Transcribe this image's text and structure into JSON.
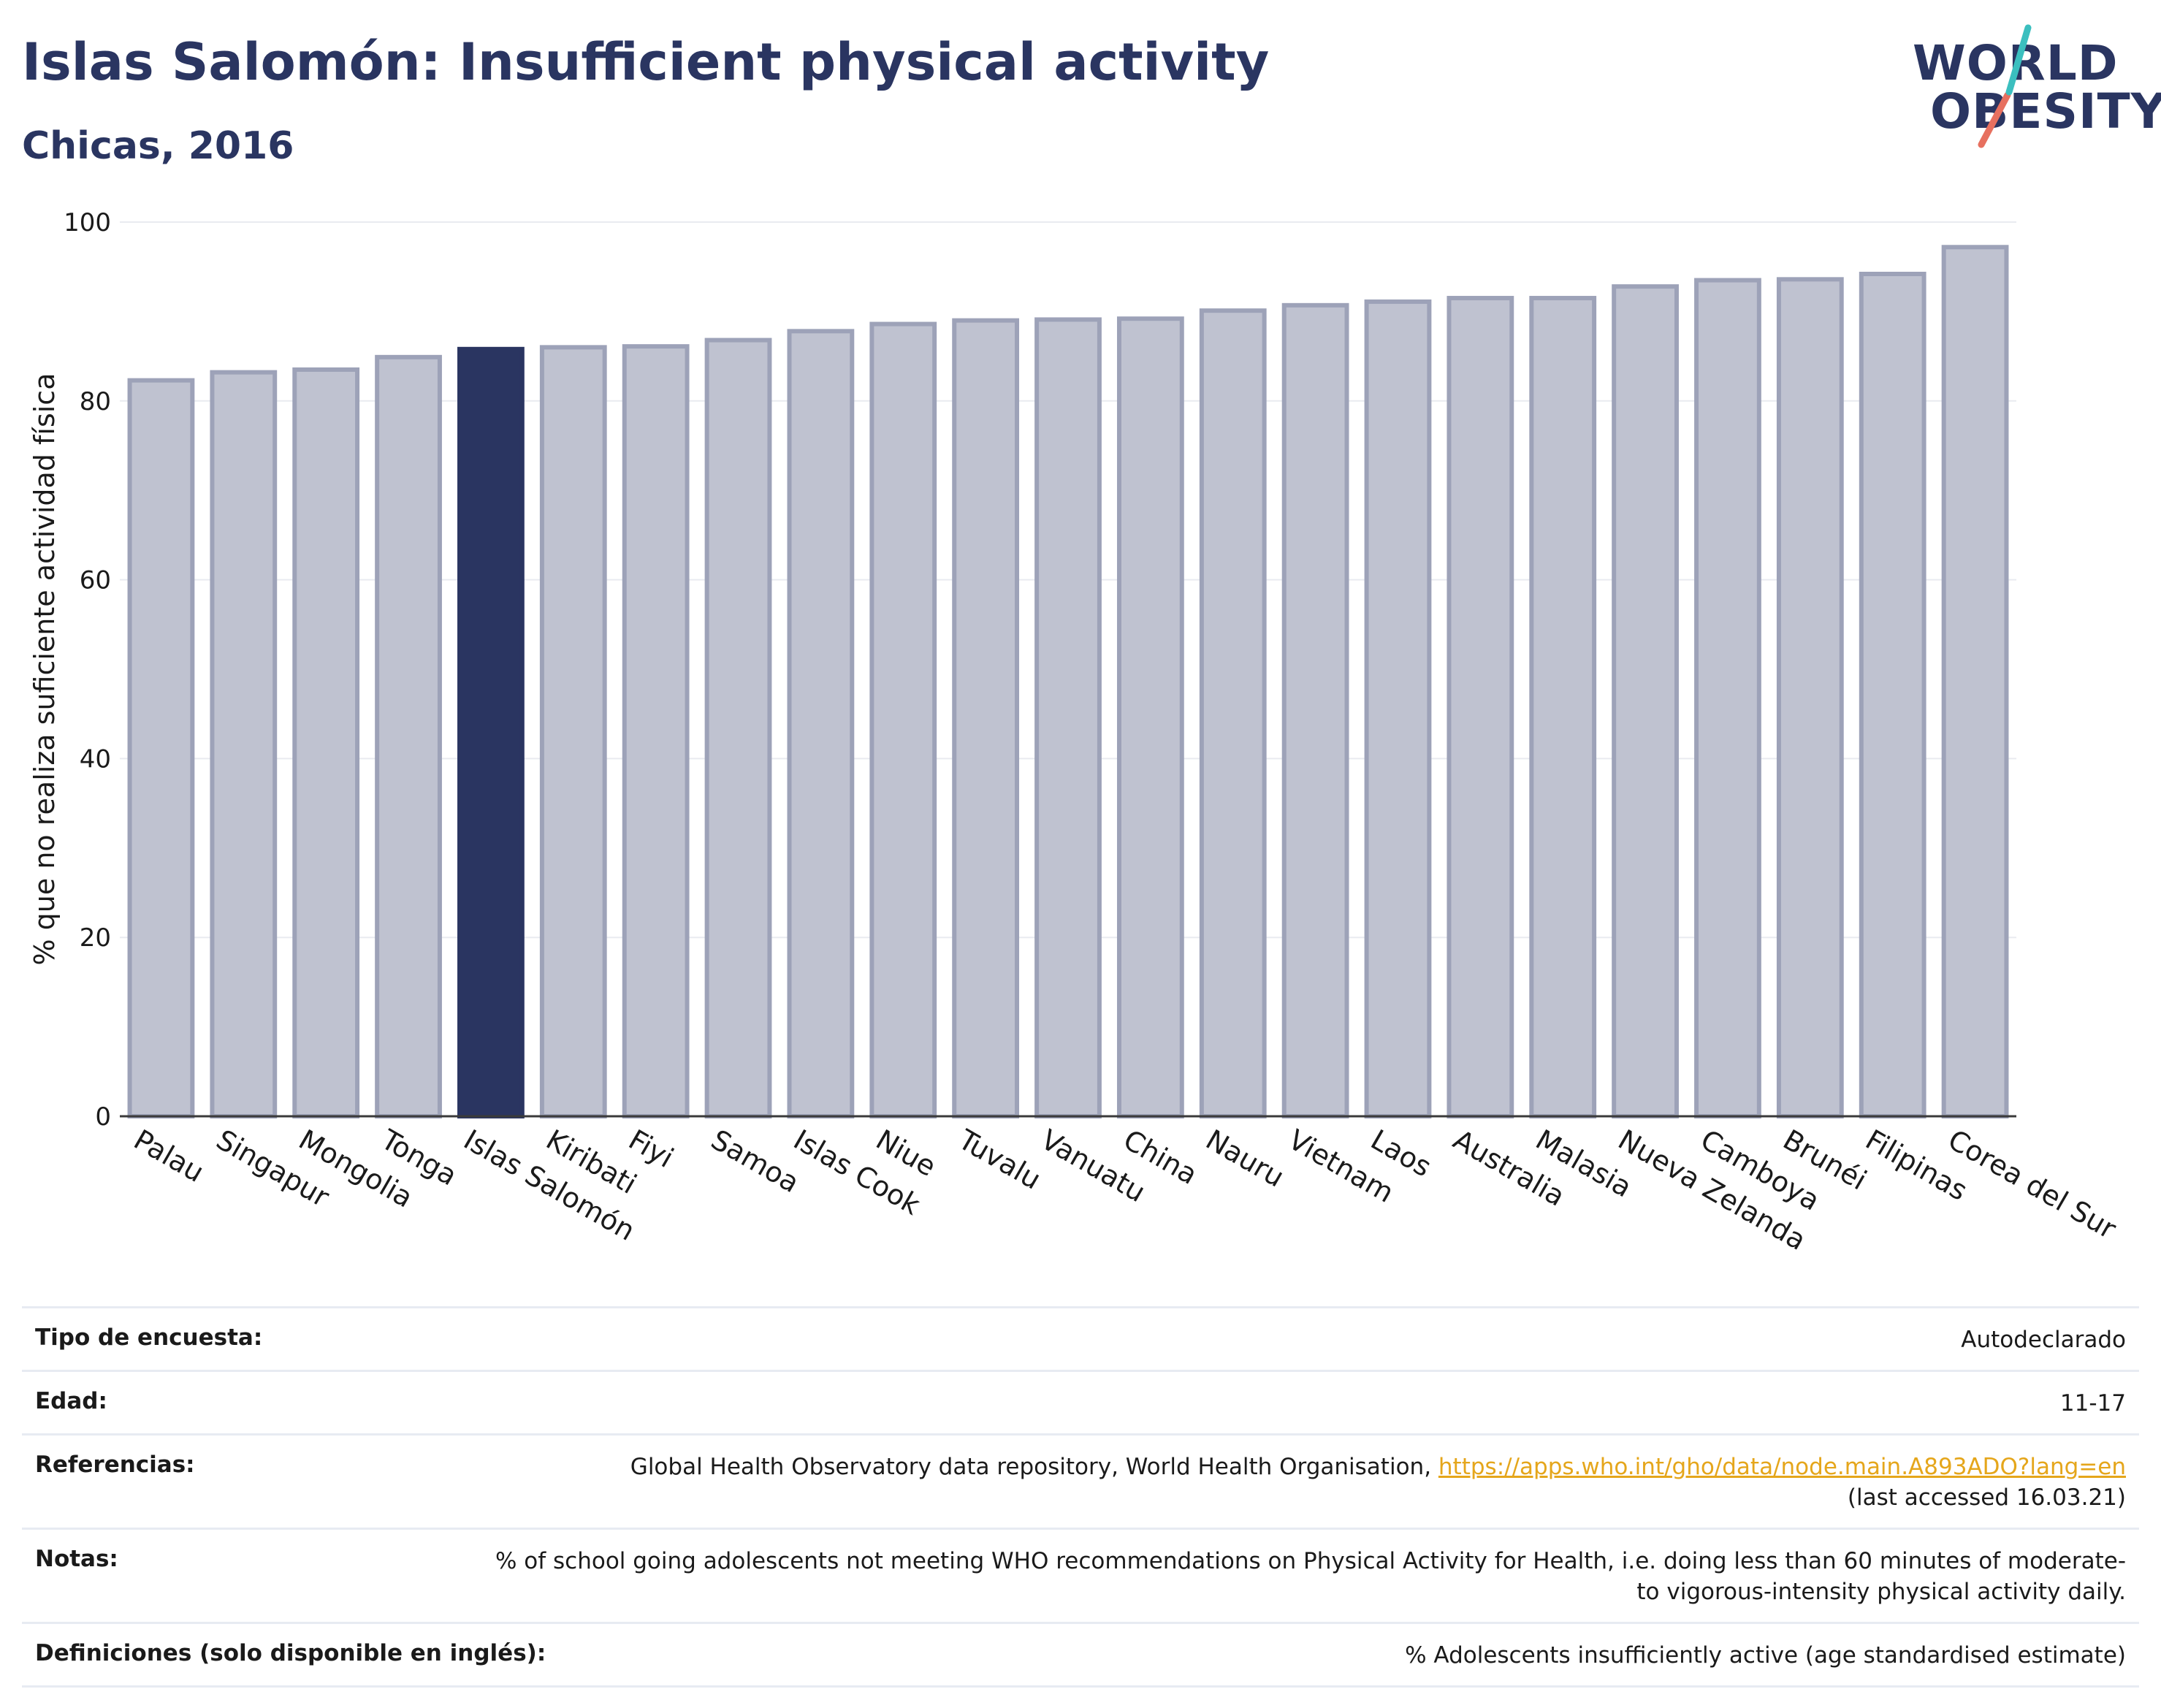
{
  "header": {
    "title": "Islas Salomón: Insufficient physical activity",
    "subtitle": "Chicas, 2016"
  },
  "logo": {
    "line1": "WORLD",
    "line2": "OBESITY"
  },
  "colors": {
    "highlight": "#2a3561",
    "bar": "#bfc2d0",
    "bar_border": "#9da2b8",
    "text": "#2a3561",
    "link": "#e5a61b"
  },
  "chart_data": {
    "type": "bar",
    "ylabel": "% que no realiza suficiente actividad física",
    "ylim": [
      0,
      100
    ],
    "yticks": [
      0,
      20,
      40,
      60,
      80,
      100
    ],
    "grid": true,
    "highlight": "Islas Salomón",
    "categories": [
      "Palau",
      "Singapur",
      "Mongolia",
      "Tonga",
      "Islas Salomón",
      "Kiribati",
      "Fiyi",
      "Samoa",
      "Islas Cook",
      "Niue",
      "Tuvalu",
      "Vanuatu",
      "China",
      "Nauru",
      "Vietnam",
      "Laos",
      "Australia",
      "Malasia",
      "Nueva Zelanda",
      "Camboya",
      "Brunéi",
      "Filipinas",
      "Corea del Sur"
    ],
    "values": [
      82.3,
      83.2,
      83.5,
      84.9,
      85.8,
      86.0,
      86.1,
      86.8,
      87.8,
      88.6,
      89.0,
      89.1,
      89.2,
      90.1,
      90.7,
      91.1,
      91.5,
      91.5,
      92.8,
      93.5,
      93.6,
      94.2,
      97.2
    ]
  },
  "meta": [
    {
      "label": "Tipo de encuesta:",
      "value": "Autodeclarado"
    },
    {
      "label": "Edad:",
      "value": "11-17"
    },
    {
      "label": "Referencias:",
      "value": "Global Health Observatory data repository, World Health Organisation, ",
      "link": "https://apps.who.int/gho/data/node.main.A893ADO?lang=en",
      "suffix": "(last accessed 16.03.21)"
    },
    {
      "label": "Notas:",
      "value": "% of school going adolescents not meeting WHO recommendations on Physical Activity for Health, i.e. doing less than 60 minutes of moderate- to vigorous-intensity physical activity daily."
    },
    {
      "label": "Definiciones (solo disponible en inglés):",
      "value": "% Adolescents insufficiently active (age standardised estimate)"
    }
  ]
}
